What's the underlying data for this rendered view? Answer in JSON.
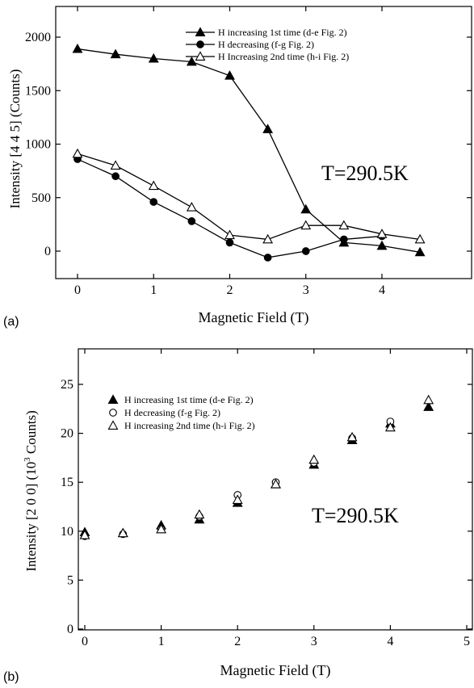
{
  "chart_data": [
    {
      "type": "line",
      "panel_label": "(a)",
      "xlabel": "Magnetic Field (T)",
      "ylabel": "Intensity [4 4 5] (Counts)",
      "xlim": [
        0,
        4.7
      ],
      "ylim": [
        -250,
        2250
      ],
      "xticks": [
        0,
        1,
        2,
        3,
        4
      ],
      "yticks": [
        0,
        500,
        1000,
        1500,
        2000
      ],
      "grid": false,
      "legend_position": "top-right",
      "annotation": "T=290.5K",
      "series": [
        {
          "name": "H increasing 1st time (d-e Fig. 2)",
          "marker": "filled-triangle",
          "x": [
            0,
            0.5,
            1,
            1.5,
            2,
            2.5,
            3,
            3.5,
            4,
            4.5
          ],
          "y": [
            1890,
            1840,
            1800,
            1770,
            1640,
            1140,
            390,
            80,
            50,
            -10
          ]
        },
        {
          "name": "H decreasing (f-g Fig. 2)",
          "marker": "filled-circle",
          "x": [
            0,
            0.5,
            1,
            1.5,
            2,
            2.5,
            3,
            3.5,
            4
          ],
          "y": [
            860,
            700,
            460,
            280,
            80,
            -60,
            0,
            110,
            140
          ]
        },
        {
          "name": "H Increasing 2nd time (h-i Fig. 2)",
          "marker": "open-triangle",
          "x": [
            0,
            0.5,
            1,
            1.5,
            2,
            2.5,
            3,
            3.5,
            4,
            4.5
          ],
          "y": [
            910,
            800,
            610,
            410,
            150,
            110,
            240,
            240,
            160,
            110
          ]
        }
      ]
    },
    {
      "type": "scatter",
      "panel_label": "(b)",
      "xlabel": "Magnetic Field (T)",
      "ylabel": "Intensity [2 0 0] (10",
      "ylabel_sup": "3",
      "ylabel_tail": " Counts)",
      "xlim": [
        -0.1,
        5
      ],
      "ylim": [
        -1,
        28
      ],
      "xticks": [
        0,
        1,
        2,
        3,
        4,
        5
      ],
      "yticks": [
        0,
        5,
        10,
        15,
        20,
        25
      ],
      "grid": false,
      "legend_position": "top-left",
      "annotation": "T=290.5K",
      "series": [
        {
          "name": "H increasing 1st time (d-e Fig. 2)",
          "marker": "filled-triangle",
          "x": [
            0,
            0.5,
            1,
            1.5,
            2,
            2.5,
            3,
            3.5,
            4,
            4.5
          ],
          "y": [
            9.9,
            9.8,
            10.6,
            11.2,
            12.9,
            14.8,
            16.8,
            19.3,
            21.0,
            22.7
          ]
        },
        {
          "name": "H decreasing (f-g Fig. 2)",
          "marker": "open-circle",
          "x": [
            0,
            0.5,
            1,
            1.5,
            2,
            2.5,
            3,
            3.5,
            4
          ],
          "y": [
            9.5,
            9.7,
            10.2,
            11.5,
            13.7,
            15.0,
            17.0,
            19.5,
            21.2
          ]
        },
        {
          "name": "H increasing 2nd time (h-i Fig. 2)",
          "marker": "open-triangle",
          "x": [
            0,
            0.5,
            1,
            1.5,
            2,
            2.5,
            3,
            3.5,
            4,
            4.5
          ],
          "y": [
            9.6,
            9.8,
            10.2,
            11.7,
            13.2,
            14.8,
            17.3,
            19.6,
            20.6,
            23.4
          ]
        }
      ]
    }
  ]
}
